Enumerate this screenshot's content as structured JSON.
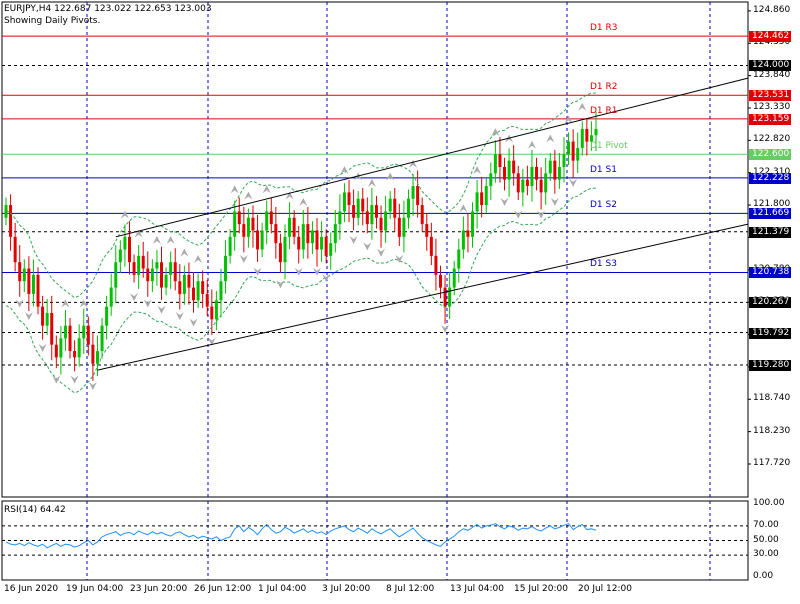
{
  "header": {
    "symbol_line": "EURJPY,H4  122.687 123.022 122.653 123.003",
    "indicator_line": "Showing Daily Pivots."
  },
  "colors": {
    "bull": "#00c000",
    "bear": "#e00000",
    "grid": "#0000c0",
    "resistance": "#e00000",
    "pivot": "#66cc66",
    "support": "#0000cc",
    "band": "#33aa55",
    "rsi": "#1e90ff",
    "fractal": "#aaaaaa"
  },
  "chart_data": {
    "type": "candlestick",
    "symbol": "EURJPY",
    "timeframe": "H4",
    "ylim": [
      117.2,
      125.0
    ],
    "price_ticks": [
      "124.860",
      "124.350",
      "123.840",
      "123.330",
      "122.820",
      "122.310",
      "121.800",
      "121.290",
      "120.780",
      "120.270",
      "119.760",
      "119.250",
      "118.740",
      "118.230",
      "117.720"
    ],
    "time_labels": [
      "16 Jun 2020",
      "19 Jun 04:00",
      "23 Jun 20:00",
      "26 Jun 12:00",
      "1 Jul 04:00",
      "3 Jul 20:00",
      "8 Jul 12:00",
      "13 Jul 04:00",
      "15 Jul 20:00",
      "20 Jul 12:00"
    ],
    "pivots": [
      {
        "name": "D1 R3",
        "value": 124.462,
        "kind": "resistance"
      },
      {
        "name": "D1 R2",
        "value": 123.531,
        "kind": "resistance"
      },
      {
        "name": "D1 R1",
        "value": 123.159,
        "kind": "resistance"
      },
      {
        "name": "D1 Pivot",
        "value": 122.6,
        "kind": "pivot"
      },
      {
        "name": "D1 S1",
        "value": 122.228,
        "kind": "support"
      },
      {
        "name": "D1 S2",
        "value": 121.669,
        "kind": "support"
      },
      {
        "name": "D1 S3",
        "value": 120.738,
        "kind": "support"
      }
    ],
    "levels": [
      "124.000",
      "121.379",
      "120.267",
      "119.792",
      "119.280"
    ],
    "close_series": [
      121.8,
      121.3,
      120.9,
      120.6,
      120.8,
      120.4,
      120.7,
      120.2,
      119.9,
      120.1,
      119.6,
      119.4,
      119.7,
      119.9,
      119.5,
      119.4,
      119.7,
      119.9,
      119.6,
      119.3,
      119.5,
      119.9,
      120.2,
      120.5,
      120.9,
      121.1,
      121.3,
      120.9,
      120.7,
      121.0,
      120.8,
      120.6,
      120.8,
      120.9,
      120.5,
      120.7,
      120.9,
      120.6,
      120.4,
      120.7,
      120.5,
      120.3,
      120.6,
      120.4,
      120.2,
      120.0,
      120.3,
      120.6,
      121.0,
      121.3,
      121.7,
      121.5,
      121.3,
      121.6,
      121.4,
      121.1,
      121.4,
      121.7,
      121.5,
      121.2,
      120.9,
      121.3,
      121.6,
      121.3,
      121.1,
      121.5,
      121.2,
      121.4,
      121.1,
      121.3,
      121.0,
      121.2,
      121.5,
      121.7,
      122.0,
      121.8,
      121.6,
      121.9,
      121.7,
      121.5,
      121.8,
      121.6,
      121.4,
      121.7,
      121.9,
      121.6,
      121.3,
      121.6,
      121.9,
      122.1,
      121.8,
      121.5,
      121.3,
      121.0,
      120.7,
      120.5,
      120.2,
      120.5,
      120.8,
      121.1,
      121.4,
      121.3,
      121.7,
      122.0,
      121.8,
      122.1,
      122.3,
      122.6,
      122.4,
      122.2,
      122.5,
      122.3,
      122.0,
      122.2,
      122.1,
      122.4,
      122.2,
      122.0,
      122.3,
      122.5,
      122.2,
      122.4,
      122.6,
      122.8,
      122.5,
      122.7,
      123.0,
      122.8,
      122.9,
      123.0
    ],
    "rsi": {
      "label": "RSI(14) 64.42",
      "levels": [
        70,
        50,
        30
      ],
      "ticks": [
        "100.00",
        "70.00",
        "50.00",
        "30.00",
        "0.00"
      ],
      "values": [
        48,
        45,
        44,
        46,
        43,
        47,
        44,
        42,
        45,
        40,
        43,
        46,
        42,
        45,
        44,
        41,
        43,
        47,
        50,
        44,
        48,
        55,
        58,
        60,
        62,
        57,
        60,
        61,
        58,
        63,
        60,
        58,
        62,
        59,
        61,
        58,
        56,
        60,
        62,
        58,
        55,
        57,
        53,
        56,
        54,
        52,
        55,
        50,
        53,
        55,
        66,
        70,
        62,
        68,
        64,
        58,
        66,
        72,
        65,
        60,
        62,
        68,
        65,
        60,
        63,
        66,
        61,
        64,
        60,
        62,
        58,
        63,
        66,
        68,
        70,
        65,
        62,
        67,
        64,
        60,
        66,
        62,
        59,
        63,
        66,
        60,
        55,
        59,
        63,
        67,
        60,
        54,
        50,
        47,
        44,
        42,
        48,
        52,
        56,
        62,
        66,
        64,
        68,
        72,
        67,
        70,
        71,
        73,
        69,
        66,
        70,
        68,
        64,
        67,
        66,
        69,
        65,
        63,
        67,
        70,
        66,
        68,
        71,
        73,
        65,
        69,
        72,
        65,
        66,
        64
      ]
    }
  }
}
